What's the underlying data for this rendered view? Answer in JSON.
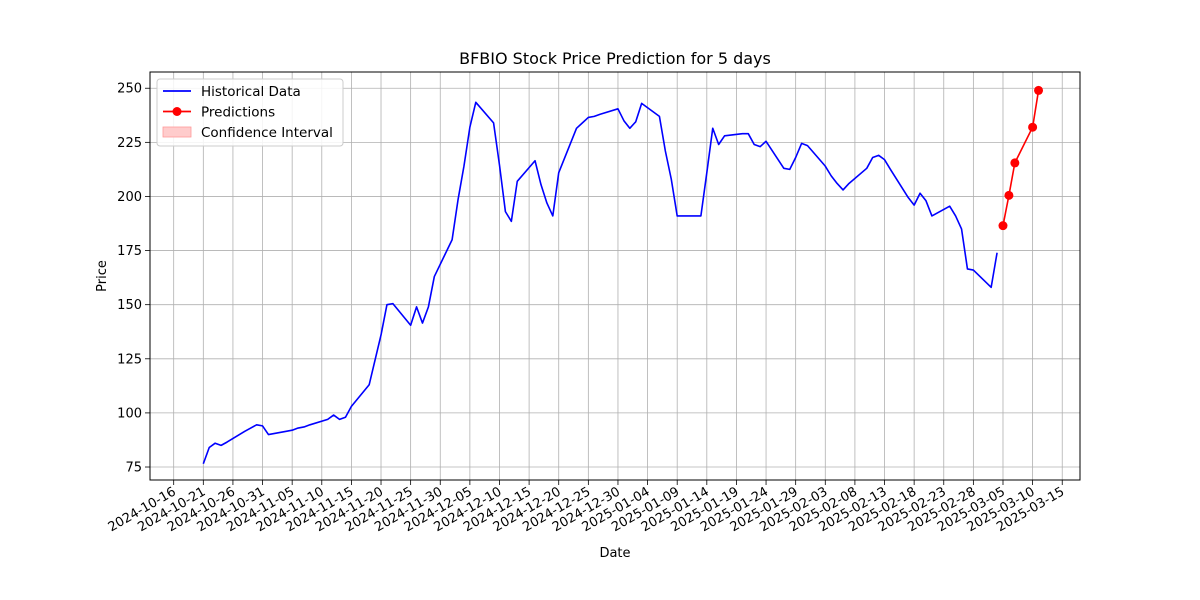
{
  "chart_data": {
    "type": "line",
    "title": "BFBIO Stock Price Prediction for 5 days",
    "xlabel": "Date",
    "ylabel": "Price",
    "x_range": [
      "2024-10-12",
      "2025-03-18"
    ],
    "ylim": [
      69,
      257.5
    ],
    "y_ticks": [
      75,
      100,
      125,
      150,
      175,
      200,
      225,
      250
    ],
    "x_ticks": [
      "2024-10-16",
      "2024-10-21",
      "2024-10-26",
      "2024-10-31",
      "2024-11-05",
      "2024-11-10",
      "2024-11-15",
      "2024-11-20",
      "2024-11-25",
      "2024-11-30",
      "2024-12-05",
      "2024-12-10",
      "2024-12-15",
      "2024-12-20",
      "2024-12-25",
      "2024-12-30",
      "2025-01-04",
      "2025-01-09",
      "2025-01-14",
      "2025-01-19",
      "2025-01-24",
      "2025-01-29",
      "2025-02-03",
      "2025-02-08",
      "2025-02-13",
      "2025-02-18",
      "2025-02-23",
      "2025-02-28",
      "2025-03-05",
      "2025-03-10",
      "2025-03-15"
    ],
    "grid": true,
    "legend_position": "top-left",
    "legend": [
      {
        "label": "Historical Data",
        "type": "line",
        "color": "#0000ff"
      },
      {
        "label": "Predictions",
        "type": "line-marker",
        "color": "#ff0000"
      },
      {
        "label": "Confidence Interval",
        "type": "patch",
        "color": "#ffcccc"
      }
    ],
    "series": [
      {
        "name": "Historical Data",
        "color": "#0000ff",
        "points": [
          [
            "2024-10-21",
            76.5
          ],
          [
            "2024-10-22",
            84
          ],
          [
            "2024-10-23",
            86
          ],
          [
            "2024-10-24",
            85
          ],
          [
            "2024-10-25",
            86.5
          ],
          [
            "2024-10-28",
            91.5
          ],
          [
            "2024-10-29",
            93
          ],
          [
            "2024-10-30",
            94.5
          ],
          [
            "2024-10-31",
            94
          ],
          [
            "2024-11-01",
            90
          ],
          [
            "2024-11-04",
            91.5
          ],
          [
            "2024-11-05",
            92
          ],
          [
            "2024-11-06",
            93
          ],
          [
            "2024-11-07",
            93.5
          ],
          [
            "2024-11-08",
            94.5
          ],
          [
            "2024-11-11",
            97
          ],
          [
            "2024-11-12",
            99
          ],
          [
            "2024-11-13",
            97
          ],
          [
            "2024-11-14",
            98
          ],
          [
            "2024-11-15",
            103
          ],
          [
            "2024-11-18",
            113
          ],
          [
            "2024-11-19",
            124.5
          ],
          [
            "2024-11-20",
            136
          ],
          [
            "2024-11-21",
            150
          ],
          [
            "2024-11-22",
            150.5
          ],
          [
            "2024-11-25",
            140.5
          ],
          [
            "2024-11-26",
            149
          ],
          [
            "2024-11-27",
            141.5
          ],
          [
            "2024-11-28",
            149
          ],
          [
            "2024-11-29",
            163
          ],
          [
            "2024-12-02",
            180
          ],
          [
            "2024-12-03",
            198.5
          ],
          [
            "2024-12-04",
            214
          ],
          [
            "2024-12-05",
            232
          ],
          [
            "2024-12-06",
            243.5
          ],
          [
            "2024-12-09",
            234
          ],
          [
            "2024-12-10",
            214.5
          ],
          [
            "2024-12-11",
            193
          ],
          [
            "2024-12-12",
            188.5
          ],
          [
            "2024-12-13",
            207
          ],
          [
            "2024-12-16",
            216.5
          ],
          [
            "2024-12-17",
            205.5
          ],
          [
            "2024-12-18",
            197
          ],
          [
            "2024-12-19",
            191
          ],
          [
            "2024-12-20",
            211
          ],
          [
            "2024-12-23",
            231.5
          ],
          [
            "2024-12-24",
            234
          ],
          [
            "2024-12-25",
            236.5
          ],
          [
            "2024-12-26",
            237
          ],
          [
            "2024-12-27",
            238
          ],
          [
            "2024-12-30",
            240.5
          ],
          [
            "2024-12-31",
            235
          ],
          [
            "2025-01-01",
            231.5
          ],
          [
            "2025-01-02",
            234.5
          ],
          [
            "2025-01-03",
            243
          ],
          [
            "2025-01-06",
            237
          ],
          [
            "2025-01-07",
            221
          ],
          [
            "2025-01-08",
            208
          ],
          [
            "2025-01-09",
            191
          ],
          [
            "2025-01-10",
            191
          ],
          [
            "2025-01-13",
            191
          ],
          [
            "2025-01-14",
            211
          ],
          [
            "2025-01-15",
            231.5
          ],
          [
            "2025-01-16",
            224
          ],
          [
            "2025-01-17",
            228
          ],
          [
            "2025-01-20",
            229
          ],
          [
            "2025-01-21",
            229
          ],
          [
            "2025-01-22",
            224
          ],
          [
            "2025-01-23",
            223
          ],
          [
            "2025-01-24",
            225.5
          ],
          [
            "2025-01-27",
            213
          ],
          [
            "2025-01-28",
            212.5
          ],
          [
            "2025-01-29",
            218
          ],
          [
            "2025-01-30",
            224.5
          ],
          [
            "2025-01-31",
            223.5
          ],
          [
            "2025-02-03",
            214
          ],
          [
            "2025-02-04",
            209.5
          ],
          [
            "2025-02-05",
            206
          ],
          [
            "2025-02-06",
            203
          ],
          [
            "2025-02-07",
            206
          ],
          [
            "2025-02-10",
            213
          ],
          [
            "2025-02-11",
            218
          ],
          [
            "2025-02-12",
            219
          ],
          [
            "2025-02-13",
            217
          ],
          [
            "2025-02-14",
            212.5
          ],
          [
            "2025-02-17",
            199.5
          ],
          [
            "2025-02-18",
            196
          ],
          [
            "2025-02-19",
            201.5
          ],
          [
            "2025-02-20",
            198
          ],
          [
            "2025-02-21",
            191
          ],
          [
            "2025-02-24",
            195.5
          ],
          [
            "2025-02-25",
            191
          ],
          [
            "2025-02-26",
            185
          ],
          [
            "2025-02-27",
            166.5
          ],
          [
            "2025-02-28",
            166
          ],
          [
            "2025-03-03",
            158
          ],
          [
            "2025-03-04",
            174
          ]
        ]
      },
      {
        "name": "Predictions",
        "color": "#ff0000",
        "marker": "circle",
        "points": [
          [
            "2025-03-05",
            186.5
          ],
          [
            "2025-03-06",
            200.5
          ],
          [
            "2025-03-07",
            215.5
          ],
          [
            "2025-03-10",
            232
          ],
          [
            "2025-03-11",
            249
          ]
        ]
      }
    ]
  }
}
